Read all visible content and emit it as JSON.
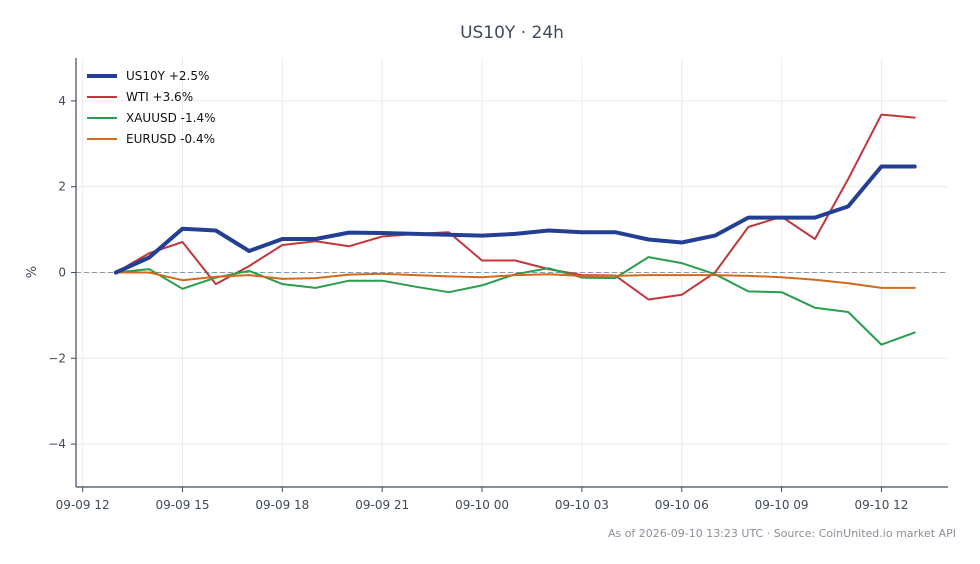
{
  "chart_data": {
    "type": "line",
    "title": "US10Y · 24h",
    "xlabel": "",
    "ylabel": "%",
    "footnote": "As of 2026-09-10 13:23 UTC · Source: CoinUnited.io market API",
    "x_ticks": [
      "09-09 12",
      "09-09 15",
      "09-09 18",
      "09-09 21",
      "09-10 00",
      "09-10 03",
      "09-10 06",
      "09-10 09",
      "09-10 12"
    ],
    "y_ticks": [
      "−4",
      "−2",
      "0",
      "2",
      "4"
    ],
    "x_start": "09-09 12:00",
    "x_unit": "hours",
    "xlim": [
      -0.2,
      26.0
    ],
    "ylim": [
      -5.0,
      5.0
    ],
    "grid": true,
    "zero_line": true,
    "legend_position": "top-left",
    "x": [
      1,
      2,
      3,
      4,
      5,
      6,
      7,
      8,
      9,
      10,
      11,
      12,
      13,
      14,
      15,
      16,
      17,
      18,
      19,
      20,
      21,
      22,
      23,
      24,
      25
    ],
    "series": [
      {
        "name": "US10Y +2.5%",
        "color": "#223f94",
        "width": 4,
        "values": [
          0.0,
          0.35,
          1.02,
          0.98,
          0.5,
          0.78,
          0.78,
          0.93,
          0.92,
          0.9,
          0.88,
          0.86,
          0.9,
          0.98,
          0.94,
          0.94,
          0.77,
          0.7,
          0.86,
          1.28,
          1.28,
          1.28,
          1.54,
          2.47,
          2.47
        ]
      },
      {
        "name": "WTI +3.6%",
        "color": "#c0373c",
        "width": 2,
        "values": [
          0.0,
          0.45,
          0.71,
          -0.27,
          0.15,
          0.64,
          0.73,
          0.61,
          0.84,
          0.9,
          0.94,
          0.28,
          0.28,
          0.08,
          -0.06,
          -0.07,
          -0.63,
          -0.52,
          0.0,
          1.06,
          1.3,
          0.78,
          2.18,
          3.68,
          3.61
        ]
      },
      {
        "name": "XAUUSD -1.4%",
        "color": "#2a9d4e",
        "width": 2,
        "values": [
          0.0,
          0.08,
          -0.38,
          -0.12,
          0.04,
          -0.27,
          -0.36,
          -0.19,
          -0.19,
          -0.33,
          -0.46,
          -0.3,
          -0.04,
          0.1,
          -0.12,
          -0.13,
          0.36,
          0.22,
          -0.04,
          -0.44,
          -0.46,
          -0.82,
          -0.92,
          -1.68,
          -1.4
        ]
      },
      {
        "name": "EURUSD -0.4%",
        "color": "#d2691e",
        "width": 2,
        "values": [
          0.0,
          0.0,
          -0.18,
          -0.1,
          -0.06,
          -0.15,
          -0.13,
          -0.05,
          -0.03,
          -0.06,
          -0.09,
          -0.11,
          -0.06,
          -0.04,
          -0.08,
          -0.08,
          -0.06,
          -0.06,
          -0.06,
          -0.08,
          -0.11,
          -0.17,
          -0.25,
          -0.36,
          -0.36
        ]
      }
    ]
  }
}
